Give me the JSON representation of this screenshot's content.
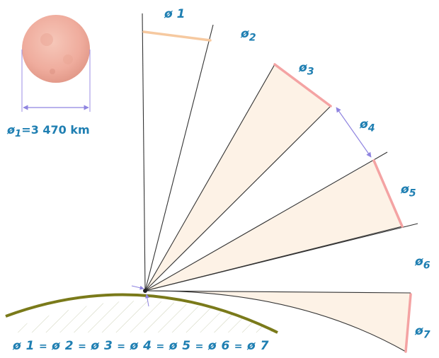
{
  "moon": {
    "symbol": "ø",
    "subscript": "1",
    "equals": "=",
    "size_value": "3 470 km"
  },
  "labels": [
    {
      "symbol": "ø",
      "index": "1"
    },
    {
      "symbol": "ø",
      "index": "2"
    },
    {
      "symbol": "ø",
      "index": "3"
    },
    {
      "symbol": "ø",
      "index": "4"
    },
    {
      "symbol": "ø",
      "index": "5"
    },
    {
      "symbol": "ø",
      "index": "6"
    },
    {
      "symbol": "ø",
      "index": "7"
    }
  ],
  "equation": {
    "terms": [
      "ø 1",
      "ø 2",
      "ø 3",
      "ø 4",
      "ø 5",
      "ø 6",
      "ø 7"
    ],
    "separator": "="
  },
  "colors": {
    "label_blue": "#1f7fb2",
    "ray_line": "#333333",
    "wedge_fill": "#fdf2e6",
    "arc_pink": "#f4a3a3",
    "arc_peach": "#f6c9a0",
    "horizon": "#7a7a1a",
    "measure_lines": "#9b8ee6",
    "moon": "#f2b3a6"
  }
}
